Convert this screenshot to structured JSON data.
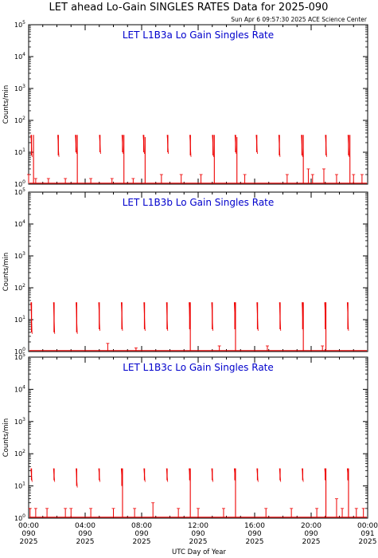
{
  "header": {
    "title": "LET ahead Lo-Gain SINGLES RATES Data for 2025-090",
    "timestamp": "Sun Apr  6 09:57:30 2025 ACE Science Center"
  },
  "colors": {
    "data": "#ee0000",
    "panel_title": "#0000cc",
    "axis": "#000000"
  },
  "x_axis": {
    "label": "UTC Day of Year",
    "ticks": [
      {
        "time": "00:00",
        "doy": "090",
        "year": "2025",
        "hour": 0
      },
      {
        "time": "04:00",
        "doy": "090",
        "year": "2025",
        "hour": 4
      },
      {
        "time": "08:00",
        "doy": "090",
        "year": "2025",
        "hour": 8
      },
      {
        "time": "12:00",
        "doy": "090",
        "year": "2025",
        "hour": 12
      },
      {
        "time": "16:00",
        "doy": "090",
        "year": "2025",
        "hour": 16
      },
      {
        "time": "20:00",
        "doy": "090",
        "year": "2025",
        "hour": 20
      },
      {
        "time": "00:00",
        "doy": "091",
        "year": "2025",
        "hour": 24
      }
    ]
  },
  "y_axis_label": "Counts/min",
  "chart_data": [
    {
      "type": "line",
      "title": "LET L1B3a Lo Gain Singles Rate",
      "xlim": [
        0,
        24
      ],
      "ylim": [
        1,
        100000
      ],
      "yscale": "log",
      "y_ticks": [
        {
          "b": "10",
          "e": "0",
          "v": 1
        },
        {
          "b": "10",
          "e": "1",
          "v": 10
        },
        {
          "b": "10",
          "e": "2",
          "v": 100
        },
        {
          "b": "10",
          "e": "3",
          "v": 1000
        },
        {
          "b": "10",
          "e": "4",
          "v": 10000
        },
        {
          "b": "10",
          "e": "5",
          "v": 100000
        }
      ],
      "spikes": [
        {
          "x": 0.2,
          "top": 35,
          "bottom": 8
        },
        {
          "x": 2.1,
          "top": 35,
          "bottom": 8
        },
        {
          "x": 3.35,
          "top": 35,
          "bottom": 10
        },
        {
          "x": 5.05,
          "top": 35,
          "bottom": 10
        },
        {
          "x": 6.65,
          "top": 35,
          "bottom": 10
        },
        {
          "x": 8.15,
          "top": 35,
          "bottom": 10
        },
        {
          "x": 9.85,
          "top": 35,
          "bottom": 10
        },
        {
          "x": 11.45,
          "top": 35,
          "bottom": 8
        },
        {
          "x": 13.05,
          "top": 35,
          "bottom": 8
        },
        {
          "x": 14.65,
          "top": 35,
          "bottom": 10
        },
        {
          "x": 16.15,
          "top": 35,
          "bottom": 10
        },
        {
          "x": 17.75,
          "top": 35,
          "bottom": 8
        },
        {
          "x": 19.35,
          "top": 35,
          "bottom": 8
        },
        {
          "x": 21.05,
          "top": 35,
          "bottom": 8
        },
        {
          "x": 22.65,
          "top": 35,
          "bottom": 8
        }
      ],
      "drops": [
        {
          "x": 0.3,
          "top": 35
        },
        {
          "x": 3.4,
          "top": 35
        },
        {
          "x": 6.7,
          "top": 35
        },
        {
          "x": 8.2,
          "top": 30
        },
        {
          "x": 13.1,
          "top": 35
        },
        {
          "x": 14.7,
          "top": 30
        },
        {
          "x": 19.4,
          "top": 35
        },
        {
          "x": 22.7,
          "top": 35
        }
      ],
      "baseline_points": [
        {
          "x": 0.0,
          "y": 2
        },
        {
          "x": 0.5,
          "y": 1.5
        },
        {
          "x": 1.4,
          "y": 1.5
        },
        {
          "x": 2.6,
          "y": 1.5
        },
        {
          "x": 4.4,
          "y": 1.5
        },
        {
          "x": 5.9,
          "y": 1.5
        },
        {
          "x": 7.4,
          "y": 1.5
        },
        {
          "x": 9.4,
          "y": 2
        },
        {
          "x": 10.8,
          "y": 2
        },
        {
          "x": 12.2,
          "y": 2
        },
        {
          "x": 15.3,
          "y": 2
        },
        {
          "x": 18.3,
          "y": 2
        },
        {
          "x": 19.8,
          "y": 3
        },
        {
          "x": 20.1,
          "y": 2
        },
        {
          "x": 20.9,
          "y": 3
        },
        {
          "x": 21.8,
          "y": 2
        },
        {
          "x": 23.0,
          "y": 2
        },
        {
          "x": 23.6,
          "y": 2
        }
      ]
    },
    {
      "type": "line",
      "title": "LET L1B3b Lo Gain Singles Rate",
      "xlim": [
        0,
        24
      ],
      "ylim": [
        1,
        100000
      ],
      "yscale": "log",
      "y_ticks": [
        {
          "b": "10",
          "e": "0",
          "v": 1
        },
        {
          "b": "10",
          "e": "1",
          "v": 10
        },
        {
          "b": "10",
          "e": "2",
          "v": 100
        },
        {
          "b": "10",
          "e": "3",
          "v": 1000
        },
        {
          "b": "10",
          "e": "4",
          "v": 10000
        },
        {
          "b": "10",
          "e": "5",
          "v": 100000
        }
      ],
      "spikes": [
        {
          "x": 0.2,
          "top": 35,
          "bottom": 4
        },
        {
          "x": 1.8,
          "top": 35,
          "bottom": 4
        },
        {
          "x": 3.4,
          "top": 35,
          "bottom": 4
        },
        {
          "x": 5.0,
          "top": 35,
          "bottom": 5
        },
        {
          "x": 6.6,
          "top": 35,
          "bottom": 5
        },
        {
          "x": 8.2,
          "top": 35,
          "bottom": 5
        },
        {
          "x": 9.8,
          "top": 35,
          "bottom": 5
        },
        {
          "x": 11.4,
          "top": 35,
          "bottom": 5
        },
        {
          "x": 13.0,
          "top": 35,
          "bottom": 5
        },
        {
          "x": 14.6,
          "top": 35,
          "bottom": 5
        },
        {
          "x": 16.2,
          "top": 35,
          "bottom": 5
        },
        {
          "x": 17.8,
          "top": 35,
          "bottom": 5
        },
        {
          "x": 19.4,
          "top": 35,
          "bottom": 5
        },
        {
          "x": 21.0,
          "top": 35,
          "bottom": 5
        },
        {
          "x": 22.6,
          "top": 35,
          "bottom": 5
        }
      ],
      "drops": [
        {
          "x": 11.4,
          "top": 35
        },
        {
          "x": 14.6,
          "top": 35
        },
        {
          "x": 19.4,
          "top": 35
        },
        {
          "x": 21.0,
          "top": 35
        }
      ],
      "baseline_points": [
        {
          "x": 5.6,
          "y": 1.8
        },
        {
          "x": 7.6,
          "y": 1.3
        },
        {
          "x": 13.5,
          "y": 1.5
        },
        {
          "x": 16.9,
          "y": 1.5
        },
        {
          "x": 20.8,
          "y": 1.5
        }
      ]
    },
    {
      "type": "line",
      "title": "LET L1B3c Lo Gain Singles Rate",
      "xlim": [
        0,
        24
      ],
      "ylim": [
        1,
        100000
      ],
      "yscale": "log",
      "y_ticks": [
        {
          "b": "10",
          "e": "0",
          "v": 1
        },
        {
          "b": "10",
          "e": "1",
          "v": 10
        },
        {
          "b": "10",
          "e": "2",
          "v": 100
        },
        {
          "b": "10",
          "e": "3",
          "v": 1000
        },
        {
          "b": "10",
          "e": "4",
          "v": 10000
        },
        {
          "b": "10",
          "e": "5",
          "v": 100000
        }
      ],
      "spikes": [
        {
          "x": 0.2,
          "top": 35,
          "bottom": 15
        },
        {
          "x": 1.8,
          "top": 35,
          "bottom": 15
        },
        {
          "x": 3.4,
          "top": 35,
          "bottom": 10
        },
        {
          "x": 5.0,
          "top": 35,
          "bottom": 15
        },
        {
          "x": 6.6,
          "top": 35,
          "bottom": 10
        },
        {
          "x": 8.2,
          "top": 35,
          "bottom": 15
        },
        {
          "x": 9.8,
          "top": 35,
          "bottom": 15
        },
        {
          "x": 11.4,
          "top": 35,
          "bottom": 15
        },
        {
          "x": 13.0,
          "top": 35,
          "bottom": 15
        },
        {
          "x": 14.6,
          "top": 35,
          "bottom": 15
        },
        {
          "x": 16.2,
          "top": 35,
          "bottom": 15
        },
        {
          "x": 17.8,
          "top": 35,
          "bottom": 15
        },
        {
          "x": 19.4,
          "top": 35,
          "bottom": 15
        },
        {
          "x": 21.0,
          "top": 35,
          "bottom": 15
        },
        {
          "x": 22.6,
          "top": 35,
          "bottom": 15
        }
      ],
      "drops": [
        {
          "x": 6.6,
          "top": 35
        },
        {
          "x": 11.4,
          "top": 35
        },
        {
          "x": 14.6,
          "top": 35
        },
        {
          "x": 21.0,
          "top": 35
        },
        {
          "x": 22.6,
          "top": 35
        }
      ],
      "baseline_points": [
        {
          "x": 0.1,
          "y": 2
        },
        {
          "x": 0.5,
          "y": 2
        },
        {
          "x": 1.3,
          "y": 2
        },
        {
          "x": 2.6,
          "y": 2
        },
        {
          "x": 3.0,
          "y": 2
        },
        {
          "x": 4.4,
          "y": 2
        },
        {
          "x": 6.0,
          "y": 2
        },
        {
          "x": 7.5,
          "y": 2
        },
        {
          "x": 8.8,
          "y": 3
        },
        {
          "x": 10.6,
          "y": 2
        },
        {
          "x": 12.0,
          "y": 2
        },
        {
          "x": 13.8,
          "y": 2
        },
        {
          "x": 16.8,
          "y": 2
        },
        {
          "x": 18.6,
          "y": 2
        },
        {
          "x": 20.4,
          "y": 2
        },
        {
          "x": 21.8,
          "y": 4
        },
        {
          "x": 22.2,
          "y": 2
        },
        {
          "x": 23.2,
          "y": 2
        },
        {
          "x": 23.7,
          "y": 2
        }
      ]
    }
  ]
}
